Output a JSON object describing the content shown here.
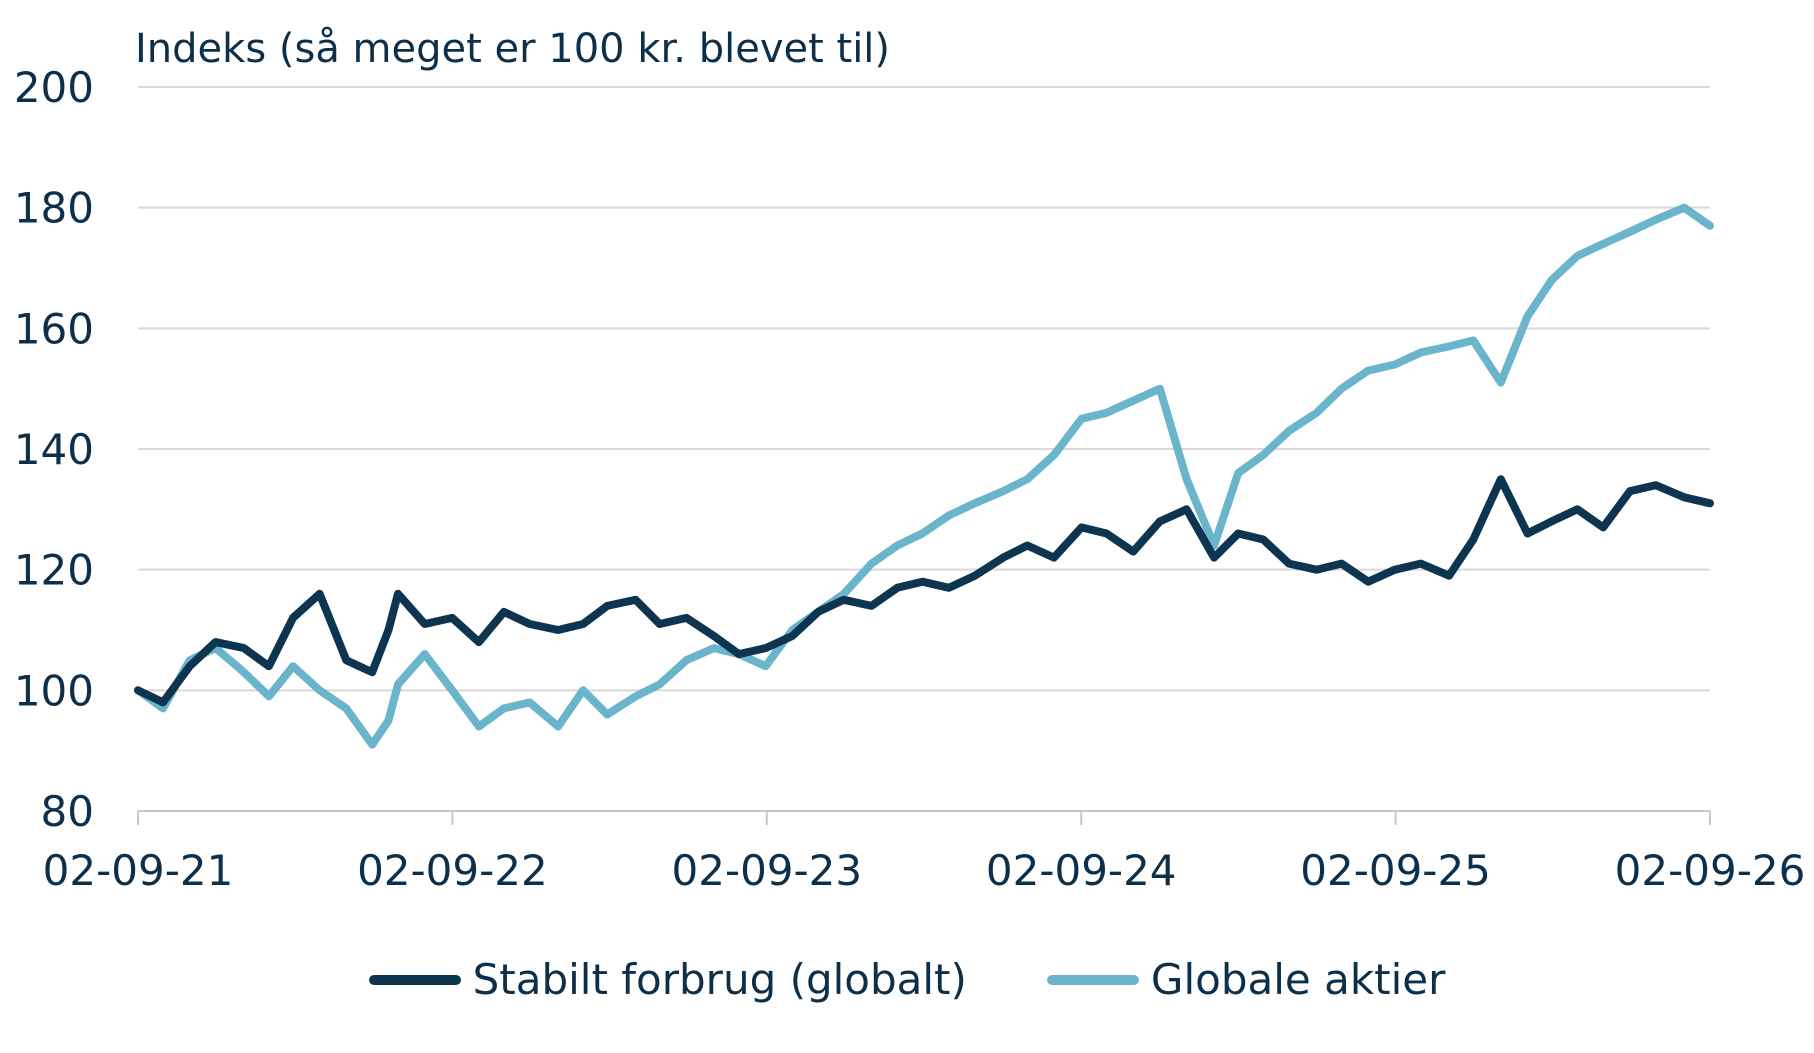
{
  "chart_data": {
    "type": "line",
    "title": "Indeks (så meget er 100 kr. blevet til)",
    "xlabel": "",
    "ylabel": "",
    "ylim": [
      80,
      200
    ],
    "yticks": [
      "80",
      "100",
      "120",
      "140",
      "160",
      "180",
      "200"
    ],
    "xticks": [
      "02-09-21",
      "02-09-22",
      "02-09-23",
      "02-09-24",
      "02-09-25",
      "02-09-26"
    ],
    "grid": "horizontal",
    "legend_position": "bottom",
    "series": [
      {
        "name": "Stabilt forbrug (globalt)",
        "color": "#0d3550",
        "x": [
          "2021-09-02",
          "2021-10-01",
          "2021-11-01",
          "2021-12-01",
          "2022-01-03",
          "2022-02-01",
          "2022-03-01",
          "2022-04-01",
          "2022-05-02",
          "2022-06-01",
          "2022-06-20",
          "2022-07-01",
          "2022-08-01",
          "2022-09-02",
          "2022-10-03",
          "2022-11-01",
          "2022-12-01",
          "2023-01-03",
          "2023-02-01",
          "2023-03-01",
          "2023-04-03",
          "2023-05-01",
          "2023-06-01",
          "2023-07-03",
          "2023-08-01",
          "2023-09-01",
          "2023-10-02",
          "2023-11-01",
          "2023-12-01",
          "2024-01-02",
          "2024-02-01",
          "2024-03-01",
          "2024-04-01",
          "2024-05-01",
          "2024-06-03",
          "2024-07-01",
          "2024-08-01",
          "2024-09-02",
          "2024-10-01",
          "2024-11-01",
          "2024-12-02",
          "2025-01-02",
          "2025-02-03",
          "2025-03-03",
          "2025-04-01",
          "2025-05-01",
          "2025-06-02",
          "2025-07-01",
          "2025-08-01",
          "2025-09-01",
          "2025-10-01",
          "2025-11-03",
          "2025-12-01",
          "2026-01-02",
          "2026-02-02",
          "2026-03-02",
          "2026-04-01",
          "2026-05-01",
          "2026-06-01",
          "2026-07-01",
          "2026-08-03",
          "2026-09-02"
        ],
        "y": [
          100,
          98,
          104,
          108,
          107,
          104,
          112,
          116,
          105,
          103,
          110,
          116,
          111,
          112,
          108,
          113,
          111,
          110,
          111,
          114,
          115,
          111,
          112,
          109,
          106,
          107,
          109,
          113,
          115,
          114,
          117,
          118,
          117,
          119,
          122,
          124,
          122,
          127,
          126,
          123,
          128,
          130,
          122,
          126,
          125,
          121,
          120,
          121,
          118,
          120,
          121,
          119,
          125,
          135,
          126,
          128,
          130,
          127,
          133,
          134,
          132,
          131
        ]
      },
      {
        "name": "Globale aktier",
        "color": "#6bb5cc",
        "x": [
          "2021-09-02",
          "2021-10-01",
          "2021-11-01",
          "2021-12-01",
          "2022-01-03",
          "2022-02-01",
          "2022-03-01",
          "2022-04-01",
          "2022-05-02",
          "2022-06-01",
          "2022-06-20",
          "2022-07-01",
          "2022-08-01",
          "2022-09-02",
          "2022-10-03",
          "2022-11-01",
          "2022-12-01",
          "2023-01-03",
          "2023-02-01",
          "2023-03-01",
          "2023-04-03",
          "2023-05-01",
          "2023-06-01",
          "2023-07-03",
          "2023-08-01",
          "2023-09-01",
          "2023-10-02",
          "2023-11-01",
          "2023-12-01",
          "2024-01-02",
          "2024-02-01",
          "2024-03-01",
          "2024-04-01",
          "2024-05-01",
          "2024-06-03",
          "2024-07-01",
          "2024-08-01",
          "2024-09-02",
          "2024-10-01",
          "2024-11-01",
          "2024-12-02",
          "2025-01-02",
          "2025-02-03",
          "2025-03-03",
          "2025-04-01",
          "2025-05-01",
          "2025-06-02",
          "2025-07-01",
          "2025-08-01",
          "2025-09-01",
          "2025-10-01",
          "2025-11-03",
          "2025-12-01",
          "2026-01-02",
          "2026-02-02",
          "2026-03-02",
          "2026-04-01",
          "2026-05-01",
          "2026-06-01",
          "2026-07-01",
          "2026-08-03",
          "2026-09-02"
        ],
        "y": [
          100,
          97,
          105,
          107,
          103,
          99,
          104,
          100,
          97,
          91,
          95,
          101,
          106,
          100,
          94,
          97,
          98,
          94,
          100,
          96,
          99,
          101,
          105,
          107,
          106,
          104,
          110,
          113,
          116,
          121,
          124,
          126,
          129,
          131,
          133,
          135,
          139,
          145,
          146,
          148,
          150,
          135,
          124,
          136,
          139,
          143,
          146,
          150,
          153,
          154,
          156,
          157,
          158,
          151,
          162,
          168,
          172,
          174,
          176,
          178,
          180,
          177
        ]
      }
    ]
  }
}
